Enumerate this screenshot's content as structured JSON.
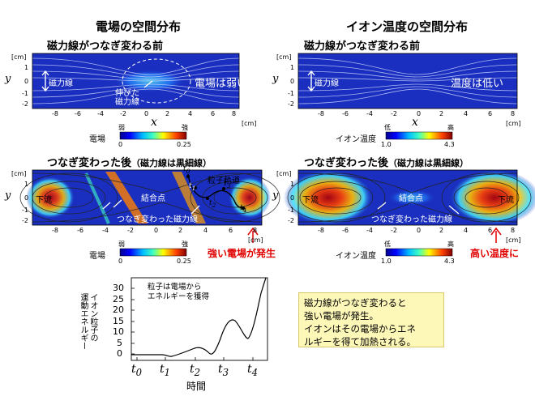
{
  "titles": {
    "left": "電場の空間分布",
    "right": "イオン温度の空間分布"
  },
  "panels": {
    "before_left_title": "磁力線がつなぎ変わる前",
    "before_right_title": "磁力線がつなぎ変わる前",
    "after_left_title": "つなぎ変わった後",
    "after_right_title": "つなぎ変わった後",
    "after_paren": "（磁力線は黒細線）"
  },
  "axes": {
    "y_unit": "[cm]",
    "x_unit": "[cm]",
    "x_symbol": "x",
    "y_symbol": "y",
    "x_ticks": [
      "-8",
      "-6",
      "-4",
      "-2",
      "0",
      "2",
      "4",
      "6",
      "8"
    ],
    "y_ticks": [
      "1",
      "0",
      "-1",
      "-2"
    ]
  },
  "annotations": {
    "field_line": "磁力線",
    "stretched_line_1": "伸びた",
    "stretched_line_2": "磁力線",
    "weak_field": "電場は弱い",
    "low_temp": "温度は低い",
    "downstream": "下流",
    "x_point": "結合点",
    "reconnected_line": "つなぎ変わった磁力線",
    "particle_orbit": "粒子軌道",
    "t0": "t",
    "t1": "t",
    "t2": "t",
    "t3": "t",
    "t4": "t",
    "sub0": "0",
    "sub1": "1",
    "sub2": "2",
    "sub3": "3",
    "sub4": "4"
  },
  "colorbars": {
    "efield_label": "電場",
    "efield_low": "弱",
    "efield_high": "強",
    "efield_min": "0",
    "efield_max": "0.25",
    "temp_label": "イオン温度",
    "temp_low": "低",
    "temp_high": "高",
    "temp_min": "1.0",
    "temp_max": "4.3"
  },
  "callouts": {
    "strong_field": "強い電場が発生",
    "high_temp": "高い温度に"
  },
  "energy_plot": {
    "ylabel_1": "イオン粒子の",
    "ylabel_2": "運動エネルギー",
    "xlabel": "時間",
    "inset_1": "粒子は電場から",
    "inset_2": "エネルギーを獲得",
    "y_ticks": [
      "0",
      "5",
      "10",
      "15",
      "20",
      "25",
      "30"
    ],
    "x_ticks": [
      "t0",
      "t1",
      "t2",
      "t3",
      "t4"
    ],
    "ylim": [
      0,
      35
    ]
  },
  "note": {
    "line1": "磁力線がつなぎ変わると",
    "line2": "強い電場が発生。",
    "line3": "イオンはその電場からエネ",
    "line4": "ルギーを得て加熱される。"
  },
  "colors": {
    "deep_blue": "#1a2fbf",
    "red": "#e00000",
    "note_bg": "#fdf7b8"
  }
}
